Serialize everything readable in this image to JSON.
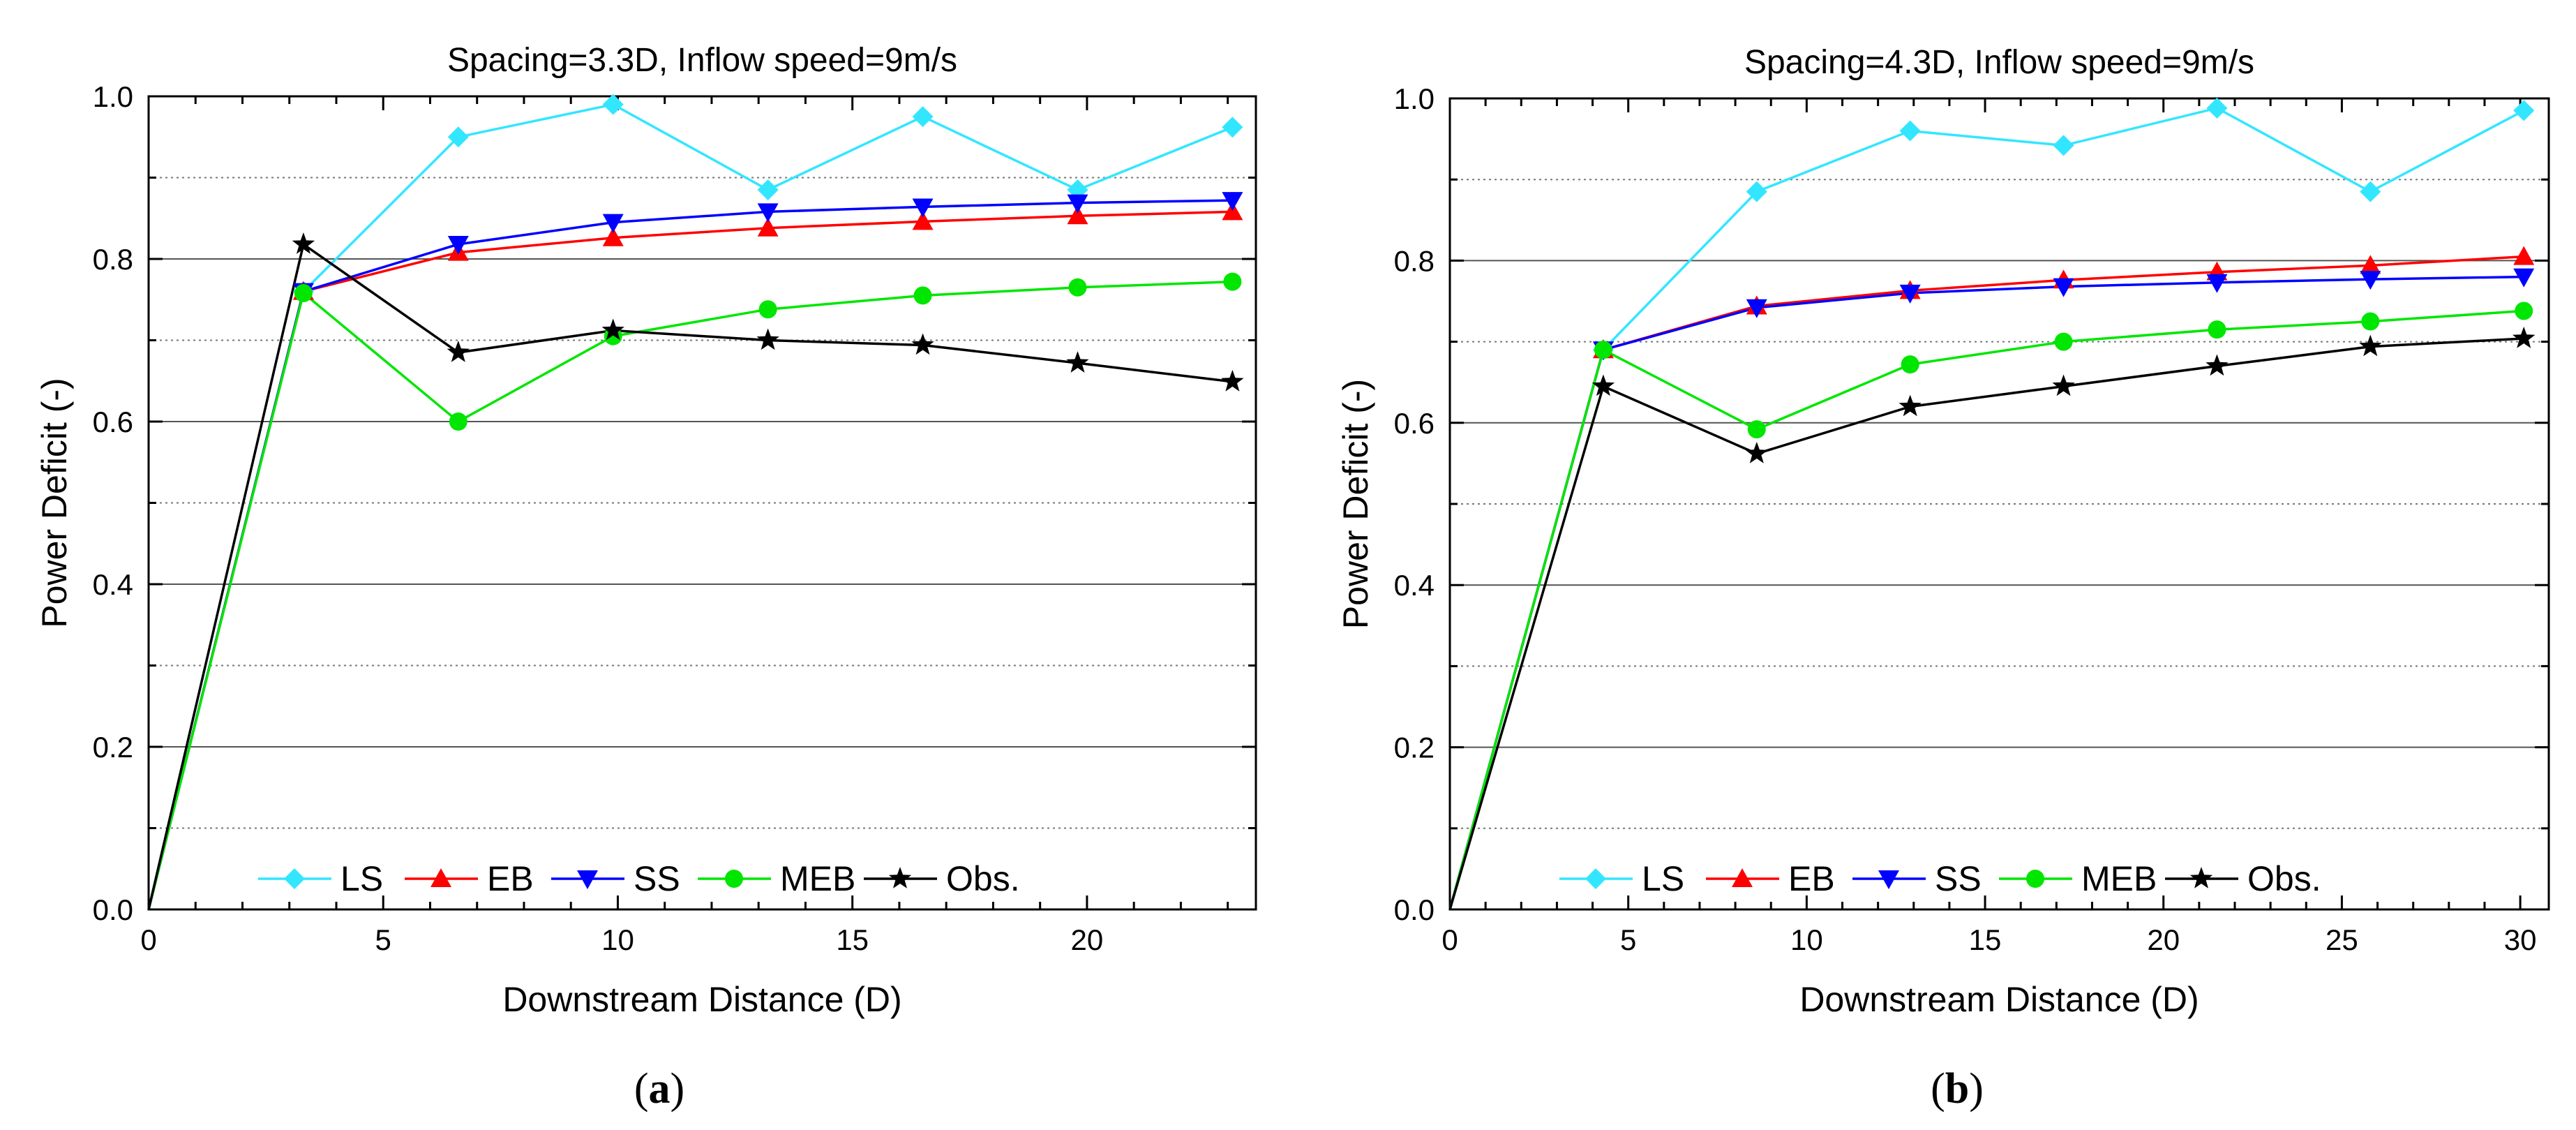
{
  "chart_data": [
    {
      "type": "line",
      "title": "Spacing=3.3D, Inflow speed=9m/s",
      "xlabel": "Downstream Distance (D)",
      "ylabel": "Power Deficit (-)",
      "xlim": [
        0,
        23.6
      ],
      "ylim": [
        0,
        1.0
      ],
      "xticks": [
        0,
        5,
        10,
        15,
        20
      ],
      "xtick_labels": [
        "0",
        "5",
        "10",
        "15",
        "20"
      ],
      "yticks": [
        0,
        0.2,
        0.4,
        0.6,
        0.8,
        1.0
      ],
      "ytick_labels": [
        "0.0",
        "0.2",
        "0.4",
        "0.6",
        "0.8",
        "1.0"
      ],
      "grid": "horizontal",
      "legend_position": "bottom",
      "panel_label": "(a)",
      "panel_letter": "a",
      "x": [
        0,
        3.3,
        6.6,
        9.9,
        13.2,
        16.5,
        19.8,
        23.1
      ],
      "series": [
        {
          "name": "LS",
          "color": "#33e6ff",
          "marker": "diamond",
          "values": [
            0,
            0.76,
            0.95,
            0.99,
            0.885,
            0.975,
            0.885,
            0.962
          ]
        },
        {
          "name": "EB",
          "color": "#ff0000",
          "marker": "triangle-up",
          "values": [
            0,
            0.76,
            0.808,
            0.826,
            0.838,
            0.846,
            0.853,
            0.858
          ]
        },
        {
          "name": "SS",
          "color": "#0000ff",
          "marker": "triangle-down",
          "values": [
            0,
            0.76,
            0.818,
            0.845,
            0.858,
            0.864,
            0.869,
            0.872
          ]
        },
        {
          "name": "MEB",
          "color": "#00e600",
          "marker": "circle",
          "values": [
            0,
            0.758,
            0.6,
            0.705,
            0.738,
            0.755,
            0.765,
            0.772
          ]
        },
        {
          "name": "Obs.",
          "color": "#000000",
          "marker": "star",
          "values": [
            0,
            0.818,
            0.685,
            0.712,
            0.7,
            0.694,
            0.672,
            0.649
          ]
        }
      ]
    },
    {
      "type": "line",
      "title": "Spacing=4.3D, Inflow speed=9m/s",
      "xlabel": "Downstream Distance (D)",
      "ylabel": "Power Deficit (-)",
      "xlim": [
        0,
        30.8
      ],
      "ylim": [
        0,
        1.0
      ],
      "xticks": [
        0,
        5,
        10,
        15,
        20,
        25,
        30
      ],
      "xtick_labels": [
        "0",
        "5",
        "10",
        "15",
        "20",
        "25",
        "30"
      ],
      "yticks": [
        0,
        0.2,
        0.4,
        0.6,
        0.8,
        1.0
      ],
      "ytick_labels": [
        "0.0",
        "0.2",
        "0.4",
        "0.6",
        "0.8",
        "1.0"
      ],
      "grid": "horizontal",
      "legend_position": "bottom",
      "panel_label": "(b)",
      "panel_letter": "b",
      "x": [
        0,
        4.3,
        8.6,
        12.9,
        17.2,
        21.5,
        25.8,
        30.1
      ],
      "series": [
        {
          "name": "LS",
          "color": "#33e6ff",
          "marker": "diamond",
          "values": [
            0,
            0.69,
            0.885,
            0.96,
            0.942,
            0.988,
            0.885,
            0.985
          ]
        },
        {
          "name": "EB",
          "color": "#ff0000",
          "marker": "triangle-up",
          "values": [
            0,
            0.69,
            0.744,
            0.763,
            0.776,
            0.786,
            0.794,
            0.805
          ]
        },
        {
          "name": "SS",
          "color": "#0000ff",
          "marker": "triangle-down",
          "values": [
            0,
            0.69,
            0.742,
            0.76,
            0.768,
            0.773,
            0.777,
            0.78
          ]
        },
        {
          "name": "MEB",
          "color": "#00e600",
          "marker": "circle",
          "values": [
            0,
            0.69,
            0.592,
            0.672,
            0.7,
            0.715,
            0.725,
            0.738
          ]
        },
        {
          "name": "Obs.",
          "color": "#000000",
          "marker": "star",
          "values": [
            0,
            0.645,
            0.562,
            0.62,
            0.645,
            0.67,
            0.694,
            0.704
          ]
        }
      ]
    }
  ]
}
